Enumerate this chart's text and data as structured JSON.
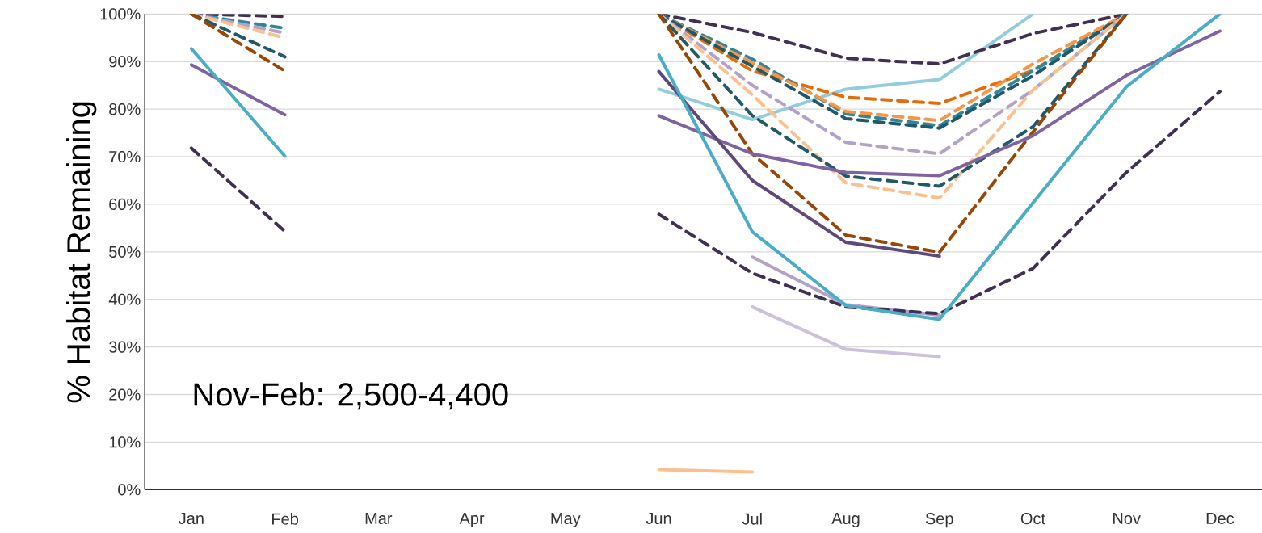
{
  "chart_data": {
    "type": "line",
    "ylabel": "% Habitat Remaining",
    "categories": [
      "Jan",
      "Feb",
      "Mar",
      "Apr",
      "May",
      "Jun",
      "Jul",
      "Aug",
      "Sep",
      "Oct",
      "Nov",
      "Dec"
    ],
    "ylim": [
      0,
      100
    ],
    "yticks": [
      {
        "value": 0,
        "label": "0%"
      },
      {
        "value": 10,
        "label": "10%"
      },
      {
        "value": 20,
        "label": "20%"
      },
      {
        "value": 30,
        "label": "30%"
      },
      {
        "value": 40,
        "label": "40%"
      },
      {
        "value": 50,
        "label": "50%"
      },
      {
        "value": 60,
        "label": "60%"
      },
      {
        "value": 70,
        "label": "70%"
      },
      {
        "value": 80,
        "label": "80%"
      },
      {
        "value": 90,
        "label": "90%"
      },
      {
        "value": 100,
        "label": "100%"
      }
    ],
    "grid": "y",
    "annotations": [
      "Nov-Feb: 2,500-4,400"
    ],
    "series": [
      {
        "color": "#fac090",
        "line_style": "solid",
        "values": [
          null,
          null,
          null,
          null,
          null,
          4.2,
          3.7,
          null,
          null,
          null,
          null,
          null
        ]
      },
      {
        "color": "#ccc1da",
        "line_style": "solid",
        "values": [
          null,
          null,
          null,
          null,
          null,
          null,
          38.4,
          29.5,
          28.0,
          null,
          null,
          null
        ]
      },
      {
        "color": "#b3a2c7",
        "line_style": "solid",
        "values": [
          null,
          null,
          null,
          null,
          null,
          null,
          48.9,
          38.9,
          36.7,
          null,
          null,
          null
        ]
      },
      {
        "color": "#92cddc",
        "line_style": "solid",
        "values": [
          null,
          null,
          null,
          null,
          null,
          84.2,
          77.8,
          84.2,
          86.2,
          100,
          null,
          null
        ]
      },
      {
        "color": "#403152",
        "line_style": "dashed",
        "values": [
          100,
          99.5,
          null,
          null,
          null,
          100,
          96.1,
          90.7,
          89.5,
          95.9,
          100,
          null
        ]
      },
      {
        "color": "#e46c0a",
        "line_style": "dashed",
        "values": [
          null,
          null,
          null,
          null,
          null,
          100,
          88,
          82.5,
          81.2,
          88.1,
          100,
          null
        ]
      },
      {
        "color": "#31859c",
        "line_style": "dashed",
        "values": [
          100,
          97,
          null,
          null,
          null,
          100,
          90.5,
          79,
          76.5,
          88,
          100,
          null
        ]
      },
      {
        "color": "#f79646",
        "line_style": "dashed",
        "values": [
          null,
          null,
          null,
          null,
          null,
          100,
          89.7,
          79.5,
          77.6,
          89.5,
          100,
          null
        ]
      },
      {
        "color": "#215968",
        "line_style": "dashed",
        "values": [
          null,
          null,
          null,
          null,
          null,
          100,
          89,
          78,
          76,
          87,
          100,
          null
        ]
      },
      {
        "color": "#b3a2c7",
        "line_style": "dashed",
        "values": [
          100,
          96,
          null,
          null,
          null,
          100,
          85,
          73,
          70.6,
          84,
          100,
          null
        ]
      },
      {
        "color": "#fac090",
        "line_style": "dashed",
        "values": [
          100,
          95,
          null,
          null,
          null,
          100,
          83,
          64.5,
          61.3,
          84,
          100,
          null
        ]
      },
      {
        "color": "#215968",
        "line_style": "dashed",
        "values": [
          100,
          91,
          null,
          null,
          null,
          100,
          78.6,
          65.9,
          63.8,
          76.3,
          100,
          null
        ]
      },
      {
        "color": "#974806",
        "line_style": "dashed",
        "values": [
          100,
          88,
          null,
          null,
          null,
          100,
          70.6,
          53.5,
          49.9,
          75.2,
          100,
          null
        ]
      },
      {
        "color": "#403152",
        "line_style": "dashed",
        "values": [
          71.8,
          54.3,
          null,
          null,
          null,
          57.9,
          45.5,
          38.4,
          37.0,
          46.5,
          66.7,
          83.7
        ]
      },
      {
        "color": "#8064a2",
        "line_style": "solid",
        "values": [
          89.3,
          78.8,
          null,
          null,
          null,
          78.6,
          70.6,
          66.7,
          66.0,
          74.4,
          87.1,
          96.4
        ]
      },
      {
        "color": "#5f497a",
        "line_style": "solid",
        "values": [
          null,
          null,
          null,
          null,
          null,
          87.9,
          65.0,
          52.0,
          49.1,
          null,
          null,
          null
        ]
      },
      {
        "color": "#4bacc6",
        "line_style": "solid",
        "values": [
          92.7,
          70.1,
          null,
          null,
          null,
          91.4,
          54.2,
          38.7,
          35.8,
          60.3,
          84.7,
          100
        ]
      }
    ]
  }
}
